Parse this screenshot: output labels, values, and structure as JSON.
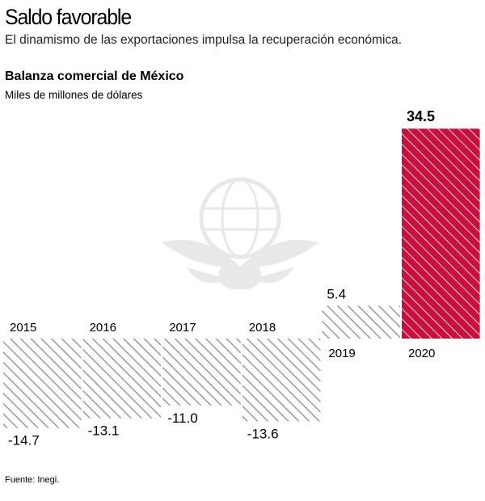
{
  "header": {
    "title": "Saldo favorable",
    "subtitle": "El dinamismo de las exportaciones impulsa la recuperación económica."
  },
  "source": "Fuente: Inegi.",
  "colors": {
    "positive_highlight": "#c8103e",
    "hatch_gray": "#9a9a9a",
    "text": "#000000"
  },
  "chart_data": {
    "type": "bar",
    "title": "Balanza comercial de México",
    "ylabel": "Miles de millones de dólares",
    "xlabel": "",
    "categories": [
      "2015",
      "2016",
      "2017",
      "2018",
      "2019",
      "2020"
    ],
    "values": [
      -14.7,
      -13.1,
      -11.0,
      -13.6,
      5.4,
      34.5
    ],
    "value_labels": [
      "-14.7",
      "-13.1",
      "-11.0",
      "-13.6",
      "5.4",
      "34.5"
    ],
    "highlight_index": 5,
    "ylim": [
      -14.7,
      34.5
    ],
    "grid": false,
    "legend": "none"
  }
}
